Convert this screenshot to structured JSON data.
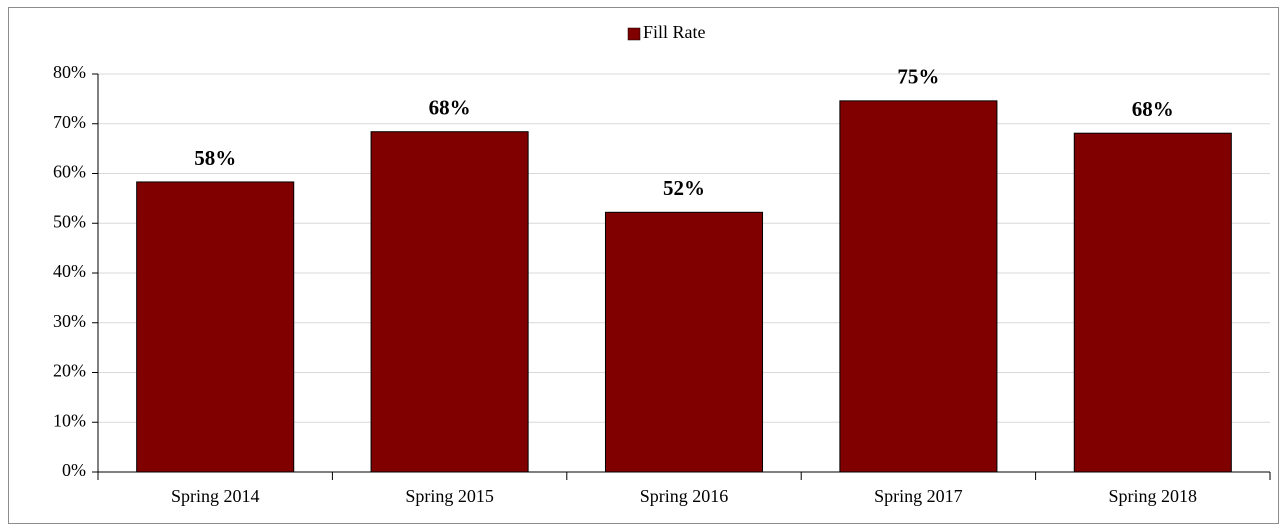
{
  "chart_data": {
    "type": "bar",
    "categories": [
      "Spring 2014",
      "Spring 2015",
      "Spring 2016",
      "Spring 2017",
      "Spring 2018"
    ],
    "series": [
      {
        "name": "Fill Rate",
        "color": "#800000",
        "values": [
          58.3,
          68.4,
          52.2,
          74.6,
          68.1
        ],
        "value_labels": [
          "58%",
          "68%",
          "52%",
          "75%",
          "68%"
        ]
      }
    ],
    "ylim": [
      0,
      80
    ],
    "yticks": [
      {
        "value": 0,
        "label": "0%"
      },
      {
        "value": 10,
        "label": "10%"
      },
      {
        "value": 20,
        "label": "20%"
      },
      {
        "value": 30,
        "label": "30%"
      },
      {
        "value": 40,
        "label": "40%"
      },
      {
        "value": 50,
        "label": "50%"
      },
      {
        "value": 60,
        "label": "60%"
      },
      {
        "value": 70,
        "label": "70%"
      },
      {
        "value": 80,
        "label": "80%"
      }
    ],
    "grid": true,
    "legend": "top"
  }
}
